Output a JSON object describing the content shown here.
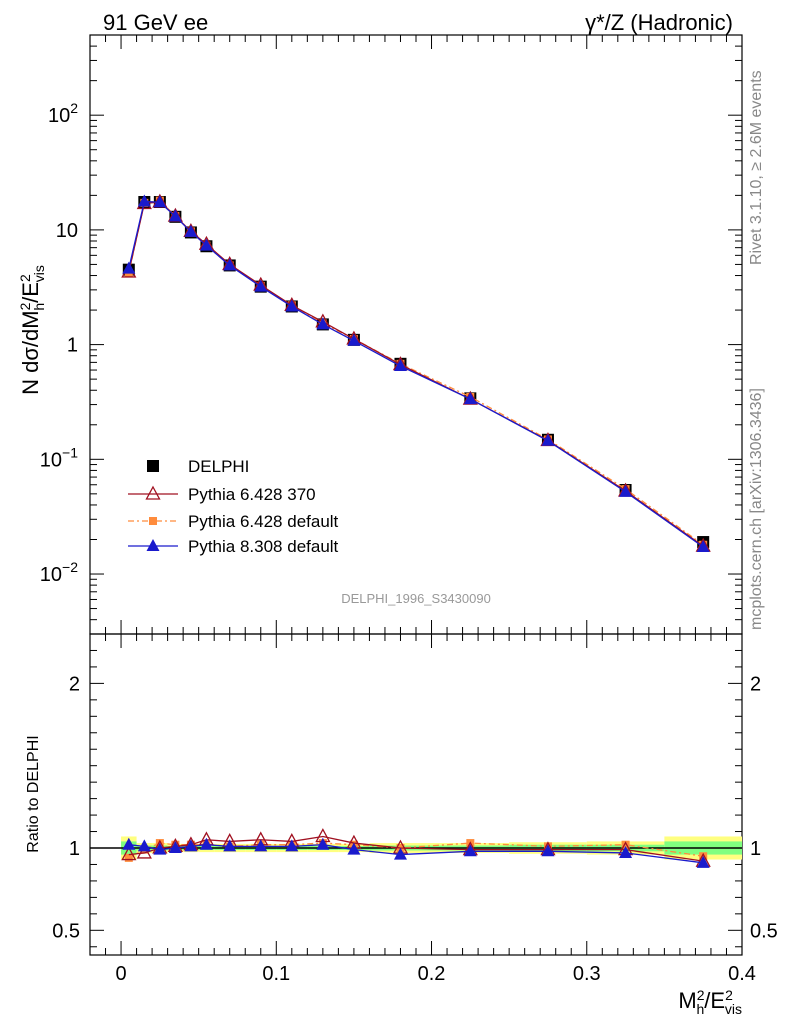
{
  "header": {
    "left": "91 GeV ee",
    "right_main": "γ*/Z (Hadronic)"
  },
  "side": {
    "rivet": "Rivet 3.1.10, ≥ 2.6M events",
    "mcplots": "mcplots.cern.ch [arXiv:1306.3436]"
  },
  "colors": {
    "data": "#000000",
    "p6_370": "#a01020",
    "p6_default": "#ff8c3c",
    "p8": "#1a1acc",
    "band_yellow": "#ffff80",
    "band_green": "#80ff80"
  },
  "chart_data": [
    {
      "type": "line",
      "title": "DELPHI_1996_S3430090",
      "ylabel": "N dσ/dM_h^2/E_vis^2",
      "yscale": "log",
      "ylim": [
        0.003,
        500
      ],
      "xlim": [
        -0.02,
        0.4
      ],
      "y_ticks": [
        {
          "v": 0.01,
          "base": "10",
          "exp": "−2"
        },
        {
          "v": 0.1,
          "base": "10",
          "exp": "−1"
        },
        {
          "v": 1,
          "base": "1",
          "exp": ""
        },
        {
          "v": 10,
          "base": "10",
          "exp": ""
        },
        {
          "v": 100,
          "base": "10",
          "exp": "2"
        }
      ],
      "x": [
        0.005,
        0.015,
        0.025,
        0.035,
        0.045,
        0.055,
        0.07,
        0.09,
        0.11,
        0.13,
        0.15,
        0.18,
        0.225,
        0.275,
        0.325,
        0.375
      ],
      "series": [
        {
          "name": "DELPHI",
          "key": "data",
          "marker": "square",
          "values": [
            4.5,
            17.5,
            17.5,
            13.0,
            9.5,
            7.2,
            4.9,
            3.2,
            2.15,
            1.5,
            1.1,
            0.68,
            0.34,
            0.148,
            0.054,
            0.019
          ]
        },
        {
          "name": "Pythia 6.428 370",
          "key": "p6_370",
          "marker": "triangle-open",
          "values": [
            4.3,
            17.0,
            17.5,
            13.2,
            9.7,
            7.5,
            5.0,
            3.3,
            2.2,
            1.58,
            1.12,
            0.67,
            0.335,
            0.146,
            0.053,
            0.0175
          ]
        },
        {
          "name": "Pythia 6.428 default",
          "key": "p6_default",
          "marker": "square-small",
          "values": [
            4.2,
            17.2,
            18.0,
            13.2,
            9.7,
            7.3,
            4.9,
            3.25,
            2.2,
            1.53,
            1.12,
            0.68,
            0.35,
            0.149,
            0.055,
            0.018
          ]
        },
        {
          "name": "Pythia 8.308 default",
          "key": "p8",
          "marker": "triangle",
          "values": [
            4.6,
            17.7,
            17.4,
            13.1,
            9.6,
            7.3,
            4.9,
            3.2,
            2.15,
            1.5,
            1.08,
            0.65,
            0.335,
            0.145,
            0.052,
            0.0172
          ]
        }
      ]
    },
    {
      "type": "line",
      "ylabel": "Ratio to DELPHI",
      "xlabel": "M_h^2/E_vis^2",
      "ylim": [
        0.35,
        2.3
      ],
      "xlim": [
        -0.02,
        0.4
      ],
      "y_ticks": [
        0.5,
        1,
        2
      ],
      "x_ticks": [
        0,
        0.1,
        0.2,
        0.3,
        0.4
      ],
      "x_edges": [
        0.0,
        0.01,
        0.02,
        0.03,
        0.04,
        0.05,
        0.06,
        0.08,
        0.1,
        0.12,
        0.14,
        0.16,
        0.2,
        0.25,
        0.3,
        0.35,
        0.4
      ],
      "band_yellow_halfwidth": [
        0.07,
        0.03,
        0.03,
        0.025,
        0.025,
        0.025,
        0.025,
        0.025,
        0.025,
        0.025,
        0.025,
        0.03,
        0.03,
        0.035,
        0.04,
        0.07
      ],
      "band_green_halfwidth": [
        0.04,
        0.015,
        0.015,
        0.012,
        0.012,
        0.012,
        0.012,
        0.012,
        0.012,
        0.012,
        0.012,
        0.015,
        0.015,
        0.02,
        0.02,
        0.04
      ],
      "x": [
        0.005,
        0.015,
        0.025,
        0.035,
        0.045,
        0.055,
        0.07,
        0.09,
        0.11,
        0.13,
        0.15,
        0.18,
        0.225,
        0.275,
        0.325,
        0.375
      ],
      "series": [
        {
          "name": "Pythia 6.428 370",
          "key": "p6_370",
          "marker": "triangle-open",
          "values": [
            0.96,
            0.97,
            1.0,
            1.01,
            1.02,
            1.05,
            1.04,
            1.05,
            1.04,
            1.07,
            1.03,
            1.0,
            0.99,
            0.99,
            0.99,
            0.92
          ]
        },
        {
          "name": "Pythia 6.428 default",
          "key": "p6_default",
          "marker": "square-small",
          "values": [
            0.94,
            0.99,
            1.03,
            1.02,
            1.02,
            1.02,
            1.01,
            1.02,
            1.02,
            1.03,
            1.02,
            1.0,
            1.03,
            1.01,
            1.02,
            0.95
          ]
        },
        {
          "name": "Pythia 8.308 default",
          "key": "p8",
          "marker": "triangle",
          "values": [
            1.02,
            1.01,
            0.99,
            1.0,
            1.01,
            1.02,
            1.01,
            1.01,
            1.01,
            1.02,
            0.99,
            0.96,
            0.98,
            0.98,
            0.97,
            0.91
          ]
        }
      ]
    }
  ]
}
